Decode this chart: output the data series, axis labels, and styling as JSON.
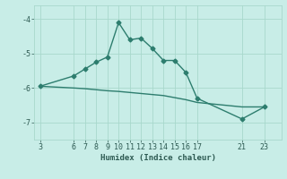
{
  "title": "",
  "xlabel": "Humidex (Indice chaleur)",
  "background_color": "#c8ede7",
  "line_color": "#2d7d6e",
  "line1_x": [
    3,
    6,
    7,
    8,
    9,
    10,
    11,
    12,
    13,
    14,
    15,
    16,
    17,
    21,
    23
  ],
  "line1_y": [
    -5.95,
    -5.65,
    -5.45,
    -5.25,
    -5.1,
    -4.1,
    -4.6,
    -4.55,
    -4.85,
    -5.2,
    -5.2,
    -5.55,
    -6.3,
    -6.9,
    -6.55
  ],
  "line2_x": [
    3,
    6,
    7,
    8,
    9,
    10,
    11,
    12,
    13,
    14,
    15,
    16,
    17,
    21,
    23
  ],
  "line2_y": [
    -5.95,
    -6.0,
    -6.02,
    -6.05,
    -6.08,
    -6.1,
    -6.13,
    -6.16,
    -6.19,
    -6.22,
    -6.28,
    -6.34,
    -6.42,
    -6.55,
    -6.55
  ],
  "xlim": [
    2.5,
    24.5
  ],
  "ylim": [
    -7.5,
    -3.6
  ],
  "yticks": [
    -7,
    -6,
    -5,
    -4
  ],
  "ytick_labels": [
    "-7",
    "-6",
    "-5",
    "-4"
  ],
  "xticks": [
    3,
    6,
    7,
    8,
    9,
    10,
    11,
    12,
    13,
    14,
    15,
    16,
    17,
    21,
    23
  ],
  "xtick_labels": [
    "3",
    "6",
    "7",
    "8",
    "9",
    "10",
    "11",
    "12",
    "13",
    "14",
    "15",
    "16",
    "17",
    "21",
    "23"
  ],
  "grid_color": "#a8d8cc",
  "font_color": "#2d5a52",
  "marker": "D",
  "marker_size": 2.5,
  "line_width": 1.0,
  "font_size": 6.0,
  "xlabel_fontsize": 6.5
}
